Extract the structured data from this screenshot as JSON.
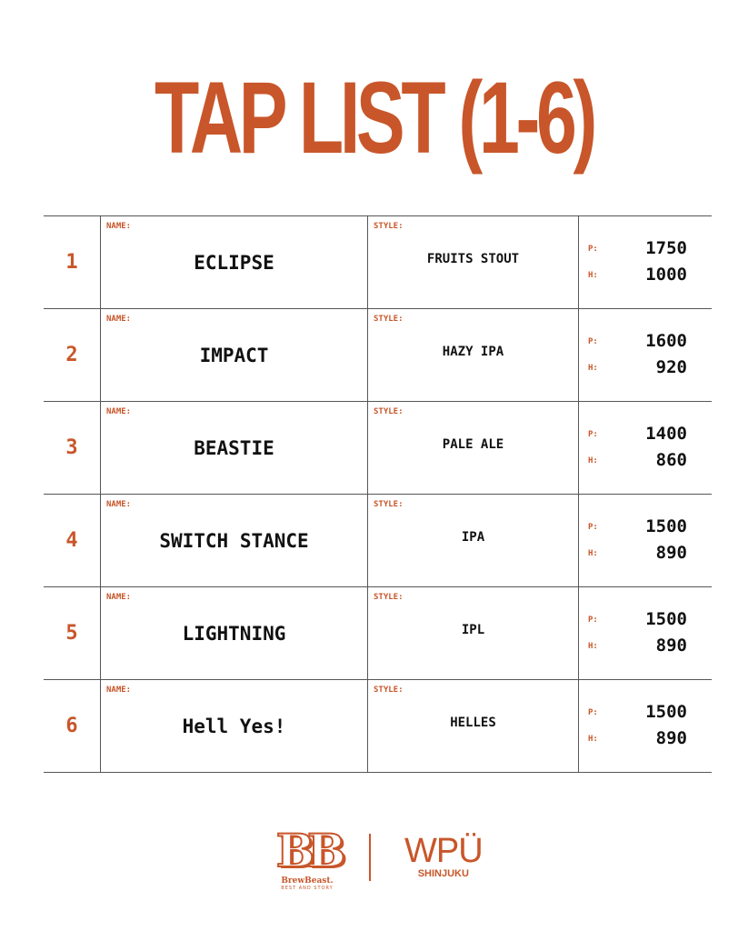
{
  "title": "TAP LIST (1-6)",
  "labels": {
    "name": "NAME:",
    "style": "STYLE:",
    "pint": "P:",
    "half": "H:"
  },
  "rows": [
    {
      "number": "1",
      "name": "ECLIPSE",
      "style": "FRUITS STOUT",
      "pint": "1750",
      "half": "1000"
    },
    {
      "number": "2",
      "name": "IMPACT",
      "style": "HAZY IPA",
      "pint": "1600",
      "half": "920"
    },
    {
      "number": "3",
      "name": "BEASTIE",
      "style": "PALE ALE",
      "pint": "1400",
      "half": "860"
    },
    {
      "number": "4",
      "name": "SWITCH STANCE",
      "style": "IPA",
      "pint": "1500",
      "half": "890"
    },
    {
      "number": "5",
      "name": "LIGHTNING",
      "style": "IPL",
      "pint": "1500",
      "half": "890"
    },
    {
      "number": "6",
      "name": "Hell Yes!",
      "style": "HELLES",
      "pint": "1500",
      "half": "890"
    }
  ],
  "footer": {
    "brewbeast_mark": "BB",
    "brewbeast_name": "BrewBeast.",
    "brewbeast_tagline": "BEST AND STORY",
    "wpu_name": "WPÜ",
    "wpu_location": "SHINJUKU"
  },
  "colors": {
    "accent": "#c8562a",
    "text": "#111111",
    "lines": "#555555"
  }
}
